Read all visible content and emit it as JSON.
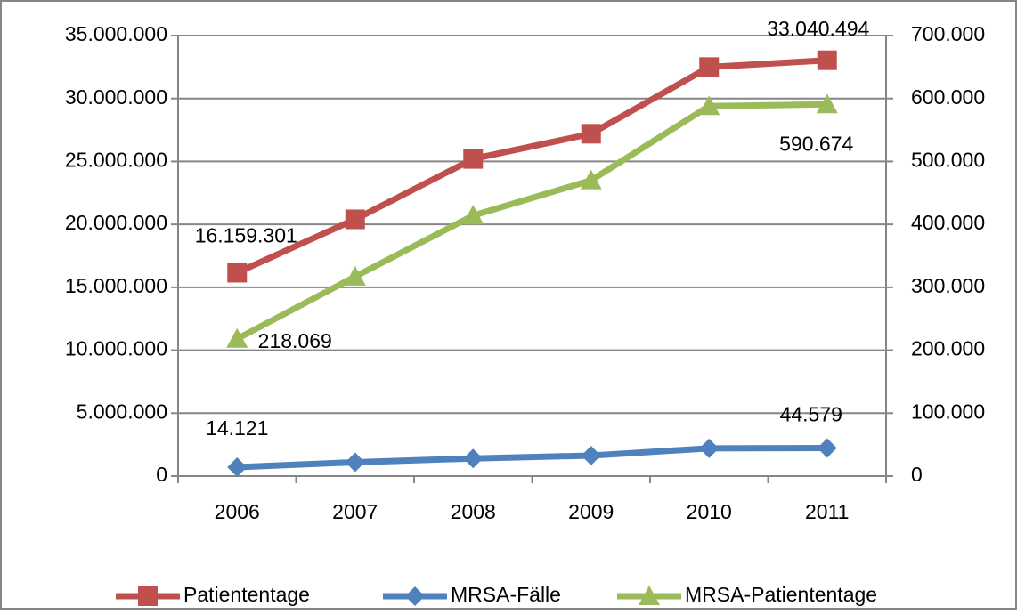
{
  "chart_data": {
    "type": "line",
    "categories": [
      "2006",
      "2007",
      "2008",
      "2009",
      "2010",
      "2011"
    ],
    "series": [
      {
        "name": "Patiententage",
        "color": "#c0504d",
        "marker": "square",
        "axis": "y",
        "values": [
          16159301,
          20400000,
          25200000,
          27200000,
          32500000,
          33040494
        ],
        "value_labels": [
          "16.159.301",
          null,
          null,
          null,
          null,
          "33.040.494"
        ]
      },
      {
        "name": "MRSA-Fälle",
        "color": "#4f81bd",
        "marker": "diamond",
        "axis": "y2",
        "values": [
          14121,
          22000,
          28000,
          32500,
          44000,
          44579
        ],
        "value_labels": [
          "14.121",
          null,
          null,
          null,
          null,
          "44.579"
        ]
      },
      {
        "name": "MRSA-Patiententage",
        "color": "#9bbb59",
        "marker": "triangle",
        "axis": "y2",
        "values": [
          218069,
          317000,
          414000,
          470000,
          588000,
          590674
        ],
        "value_labels": [
          "218.069",
          null,
          null,
          null,
          null,
          "590.674"
        ]
      }
    ],
    "ylim": [
      0,
      35000000
    ],
    "yticks": [
      0,
      {
        "value": 5000000,
        "label": "5.000.000"
      },
      {
        "value": 10000000,
        "label": "10.000.000"
      },
      {
        "value": 15000000,
        "label": "15.000.000"
      },
      {
        "value": 20000000,
        "label": "20.000.000"
      },
      {
        "value": 25000000,
        "label": "25.000.000"
      },
      {
        "value": 30000000,
        "label": "30.000.000"
      },
      {
        "value": 35000000,
        "label": "35.000.000"
      }
    ],
    "y2lim": [
      0,
      700000
    ],
    "y2ticks": [
      0,
      {
        "value": 100000,
        "label": "100.000"
      },
      {
        "value": 200000,
        "label": "200.000"
      },
      {
        "value": 300000,
        "label": "300.000"
      },
      {
        "value": 400000,
        "label": "400.000"
      },
      {
        "value": 500000,
        "label": "500.000"
      },
      {
        "value": 600000,
        "label": "600.000"
      },
      {
        "value": 700000,
        "label": "700.000"
      }
    ],
    "grid": true,
    "legend": "bottom"
  }
}
